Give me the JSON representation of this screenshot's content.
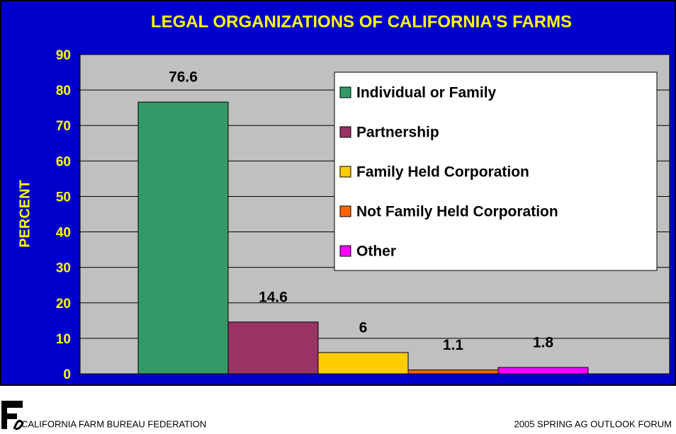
{
  "chart_data": {
    "type": "bar",
    "title": "LEGAL ORGANIZATIONS OF CALIFORNIA'S FARMS",
    "y_label": "PERCENT",
    "categories": [
      null
    ],
    "series": [
      {
        "name": "Individual or Family",
        "color": "#339966",
        "values": [
          76.6
        ]
      },
      {
        "name": "Partnership",
        "color": "#993366",
        "values": [
          14.6
        ]
      },
      {
        "name": "Family Held Corporation",
        "color": "#ffcc00",
        "values": [
          6
        ]
      },
      {
        "name": "Not Family Held Corporation",
        "color": "#ff6600",
        "values": [
          1.1
        ]
      },
      {
        "name": "Other",
        "color": "#ff00ff",
        "values": [
          1.8
        ]
      }
    ],
    "ylim": [
      0,
      90
    ],
    "yticks": [
      0,
      10,
      20,
      30,
      40,
      50,
      60,
      70,
      80,
      90
    ],
    "grid": true,
    "legend": "upper right"
  },
  "footer": {
    "left": "CALIFORNIA FARM BUREAU FEDERATION",
    "right": "2005 SPRING AG OUTLOOK FORUM"
  }
}
